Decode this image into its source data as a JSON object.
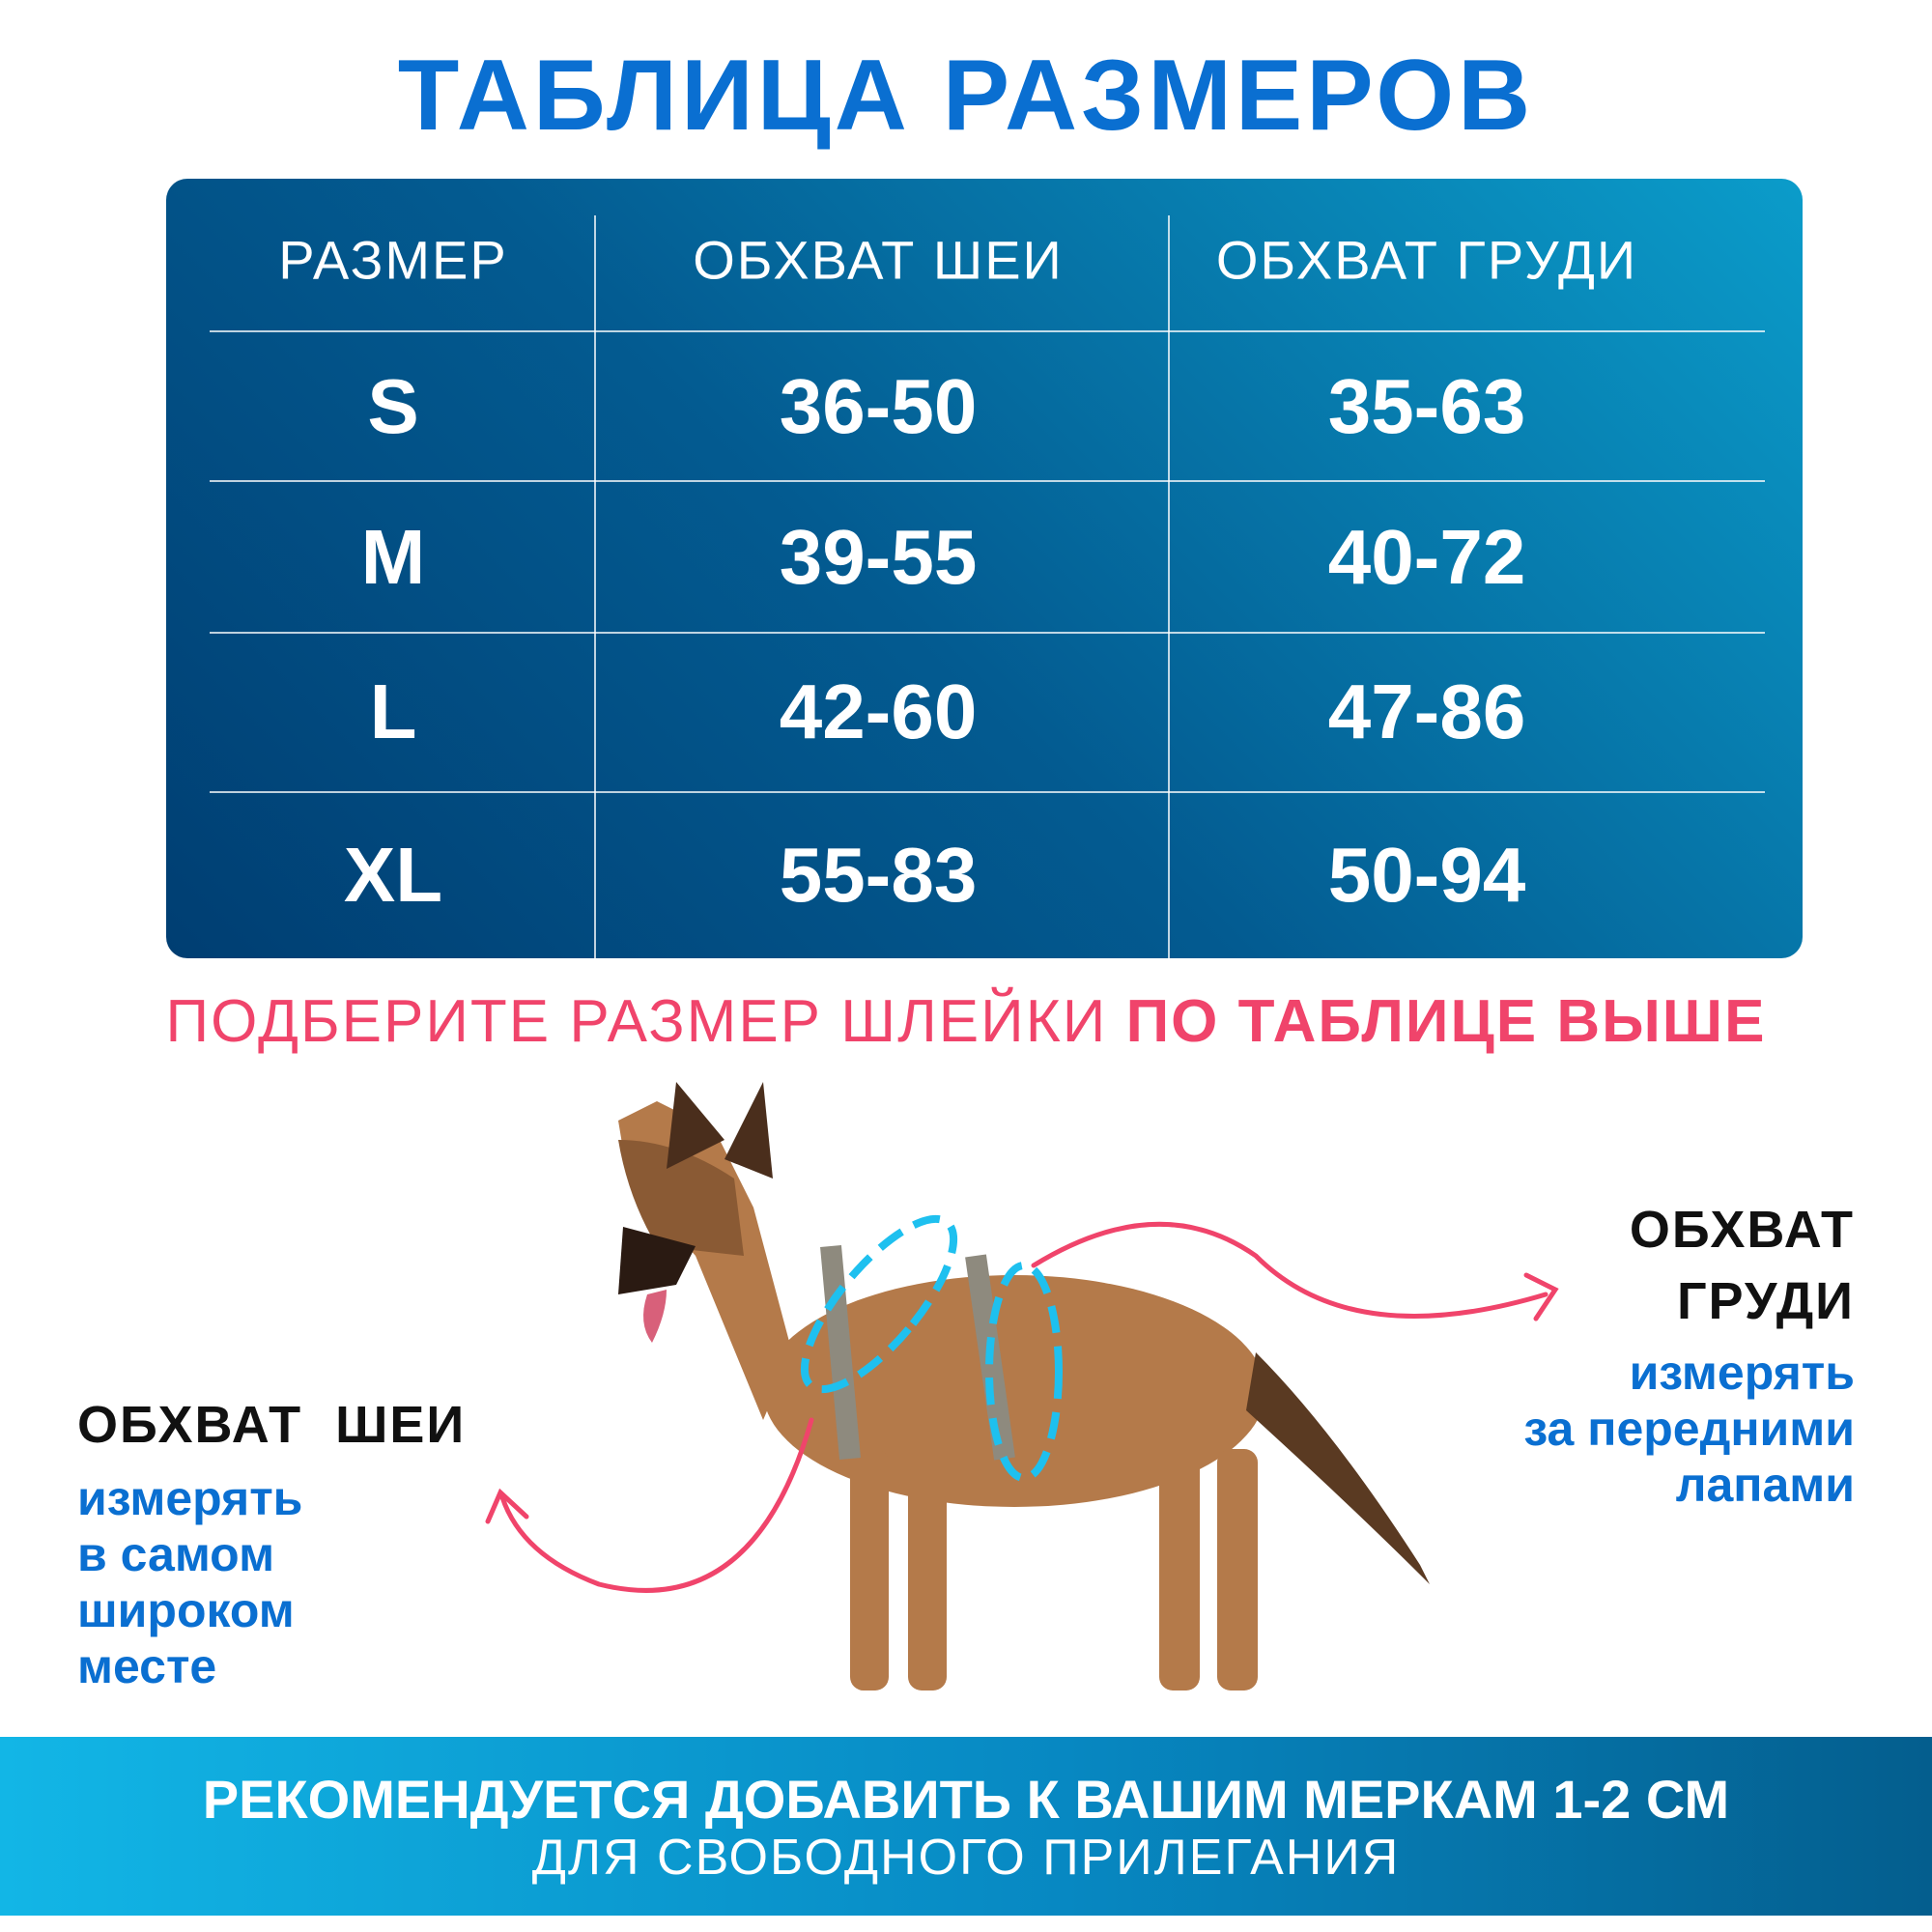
{
  "title": "ТАБЛИЦА РАЗМЕРОВ",
  "table": {
    "header": [
      "РАЗМЕР",
      "ОБХВАТ ШЕИ",
      "ОБХВАТ ГРУДИ"
    ],
    "rows": [
      [
        "S",
        "36-50",
        "35-63"
      ],
      [
        "M",
        "39-55",
        "40-72"
      ],
      [
        "L",
        "42-60",
        "47-86"
      ],
      [
        "XL",
        "55-83",
        "50-94"
      ]
    ]
  },
  "subtitle": {
    "text": "ПОДБЕРИТЕ РАЗМЕР ШЛЕЙКИ",
    "emphasis": "ПО ТАБЛИЦЕ ВЫШЕ"
  },
  "neck": {
    "title": "ОБХВАТ  ШЕИ",
    "lines": [
      "измерять",
      "в самом",
      "широком",
      "месте"
    ]
  },
  "chest": {
    "title": [
      "ОБХВАТ",
      "ГРУДИ"
    ],
    "lines": [
      "измерять",
      "за передними",
      "лапами"
    ]
  },
  "footer": {
    "line1": "РЕКОМЕНДУЕТСЯ ДОБАВИТЬ К ВАШИМ МЕРКАМ 1-2 СМ",
    "line2": "ДЛЯ СВОБОДНОГО ПРИЛЕГАНИЯ"
  }
}
